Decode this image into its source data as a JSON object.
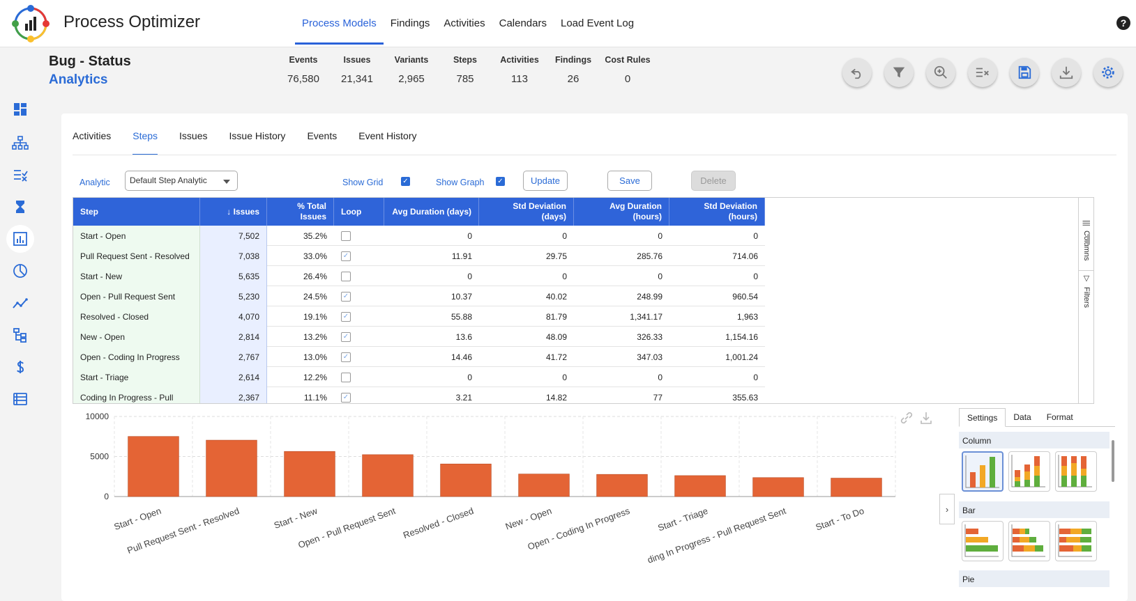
{
  "app": {
    "title": "Process Optimizer"
  },
  "topnav": [
    {
      "label": "Process Models",
      "active": true
    },
    {
      "label": "Findings"
    },
    {
      "label": "Activities"
    },
    {
      "label": "Calendars"
    },
    {
      "label": "Load Event Log"
    }
  ],
  "help": "?",
  "page": {
    "title": "Bug - Status",
    "subtitle": "Analytics"
  },
  "stats": [
    {
      "label": "Events",
      "value": "76,580"
    },
    {
      "label": "Issues",
      "value": "21,341"
    },
    {
      "label": "Variants",
      "value": "2,965"
    },
    {
      "label": "Steps",
      "value": "785"
    },
    {
      "label": "Activities",
      "value": "113"
    },
    {
      "label": "Findings",
      "value": "26"
    },
    {
      "label": "Cost Rules",
      "value": "0"
    }
  ],
  "toolbar_icons": [
    "undo-icon",
    "filter-icon",
    "zoom-in-icon",
    "clear-filter-icon",
    "save-icon",
    "download-icon",
    "settings-icon"
  ],
  "sidebar_icons": [
    "dashboard-icon",
    "process-map-icon",
    "findings-icon",
    "hourglass-icon",
    "analytics-icon",
    "pie-chart-icon",
    "trend-icon",
    "hierarchy-icon",
    "dollar-icon",
    "event-log-icon"
  ],
  "tabs": [
    {
      "label": "Activities"
    },
    {
      "label": "Steps",
      "active": true
    },
    {
      "label": "Issues"
    },
    {
      "label": "Issue History"
    },
    {
      "label": "Events"
    },
    {
      "label": "Event History"
    }
  ],
  "controls": {
    "analytic_label": "Analytic",
    "analytic_value": "Default Step Analytic",
    "show_grid_label": "Show Grid",
    "show_grid": true,
    "show_graph_label": "Show Graph",
    "show_graph": true,
    "update_label": "Update",
    "save_label": "Save",
    "delete_label": "Delete"
  },
  "grid": {
    "columns": [
      {
        "label": "Step"
      },
      {
        "label": "↓ Issues"
      },
      {
        "label": "% Total Issues"
      },
      {
        "label": "Loop"
      },
      {
        "label": "Avg Duration (days)"
      },
      {
        "label": "Std Deviation (days)"
      },
      {
        "label": "Avg Duration (hours)"
      },
      {
        "label": "Std Deviation (hours)"
      }
    ],
    "rows": [
      {
        "step": "Start - Open",
        "issues": "7,502",
        "pct": "35.2%",
        "loop": false,
        "avg_days": "0",
        "std_days": "0",
        "avg_hours": "0",
        "std_hours": "0"
      },
      {
        "step": "Pull Request Sent - Resolved",
        "issues": "7,038",
        "pct": "33.0%",
        "loop": true,
        "avg_days": "11.91",
        "std_days": "29.75",
        "avg_hours": "285.76",
        "std_hours": "714.06"
      },
      {
        "step": "Start - New",
        "issues": "5,635",
        "pct": "26.4%",
        "loop": false,
        "avg_days": "0",
        "std_days": "0",
        "avg_hours": "0",
        "std_hours": "0"
      },
      {
        "step": "Open - Pull Request Sent",
        "issues": "5,230",
        "pct": "24.5%",
        "loop": true,
        "avg_days": "10.37",
        "std_days": "40.02",
        "avg_hours": "248.99",
        "std_hours": "960.54"
      },
      {
        "step": "Resolved - Closed",
        "issues": "4,070",
        "pct": "19.1%",
        "loop": true,
        "avg_days": "55.88",
        "std_days": "81.79",
        "avg_hours": "1,341.17",
        "std_hours": "1,963"
      },
      {
        "step": "New - Open",
        "issues": "2,814",
        "pct": "13.2%",
        "loop": true,
        "avg_days": "13.6",
        "std_days": "48.09",
        "avg_hours": "326.33",
        "std_hours": "1,154.16"
      },
      {
        "step": "Open - Coding In Progress",
        "issues": "2,767",
        "pct": "13.0%",
        "loop": true,
        "avg_days": "14.46",
        "std_days": "41.72",
        "avg_hours": "347.03",
        "std_hours": "1,001.24"
      },
      {
        "step": "Start - Triage",
        "issues": "2,614",
        "pct": "12.2%",
        "loop": false,
        "avg_days": "0",
        "std_days": "0",
        "avg_hours": "0",
        "std_hours": "0"
      },
      {
        "step": "Coding In Progress - Pull",
        "issues": "2,367",
        "pct": "11.1%",
        "loop": true,
        "avg_days": "3.21",
        "std_days": "14.82",
        "avg_hours": "77",
        "std_hours": "355.63"
      }
    ],
    "side_tools": [
      "Columns",
      "Filters"
    ]
  },
  "chart_data": {
    "type": "bar",
    "categories": [
      "Start - Open",
      "Pull Request Sent - Resolved",
      "Start - New",
      "Open - Pull Request Sent",
      "Resolved - Closed",
      "New - Open",
      "Open - Coding In Progress",
      "Start - Triage",
      "ding In Progress - Pull Request Sent",
      "Start - To Do"
    ],
    "values": [
      7502,
      7038,
      5635,
      5230,
      4070,
      2814,
      2767,
      2614,
      2367,
      2300
    ],
    "yticks": [
      "10000",
      "5000",
      "0"
    ],
    "ylim": [
      0,
      10000
    ],
    "grid": true,
    "color": "#e46435"
  },
  "settings_panel": {
    "tabs": [
      {
        "label": "Settings",
        "active": true
      },
      {
        "label": "Data"
      },
      {
        "label": "Format"
      }
    ],
    "sections": [
      "Column",
      "Bar",
      "Pie"
    ]
  },
  "colors": {
    "accent": "#2962d9",
    "header_blue": "#2f64d9",
    "bar": "#e46435"
  }
}
